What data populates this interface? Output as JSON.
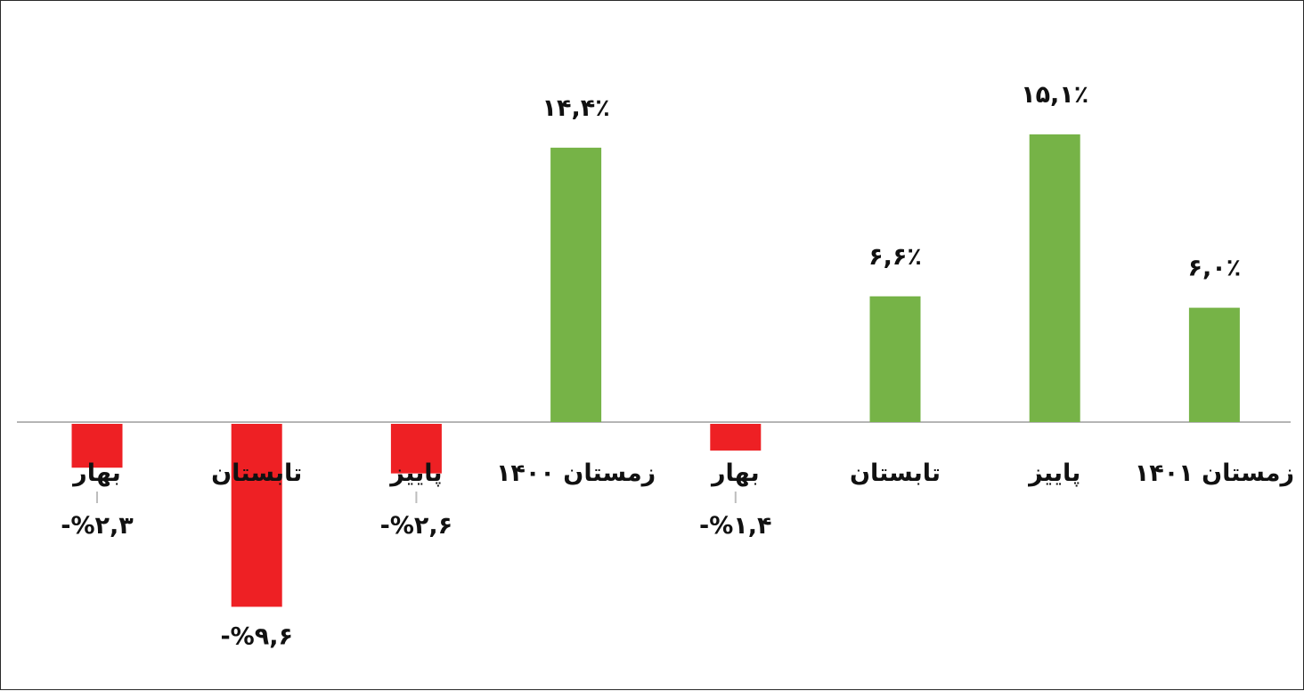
{
  "chart_data": {
    "type": "bar",
    "title": "",
    "xlabel": "",
    "ylabel": "",
    "ylim": [
      -10,
      16
    ],
    "grid": false,
    "legend": "none",
    "categories": [
      "بهار",
      "تابستان",
      "پاییز",
      "زمستان ۱۴۰۰",
      "بهار",
      "تابستان",
      "پاییز",
      "زمستان ۱۴۰۱"
    ],
    "values": [
      -2.3,
      -9.6,
      -2.6,
      14.4,
      -1.4,
      6.6,
      15.1,
      6.0
    ],
    "data_labels": [
      "-%۲,۳",
      "-%۹,۶",
      "-%۲,۶",
      "۱۴,۴٪",
      "-%۱,۴",
      "۶,۶٪",
      "۱۵,۱٪",
      "۶,۰٪"
    ],
    "colors": {
      "positive": "#76b347",
      "negative": "#ee2024",
      "axis": "#b5b5b5"
    }
  }
}
